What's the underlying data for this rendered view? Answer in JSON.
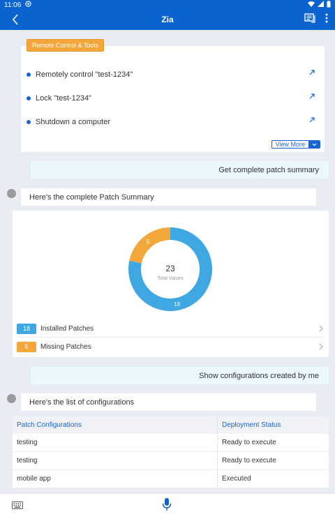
{
  "status": {
    "time": "11:06"
  },
  "header": {
    "title": "Zia"
  },
  "tools": {
    "badge": "Remote Control & Tools",
    "items": [
      {
        "label": "Remotely control \"test-1234\""
      },
      {
        "label": "Lock \"test-1234\""
      },
      {
        "label": "Shutdown a computer"
      }
    ],
    "view_more": "View More"
  },
  "messages": {
    "user1": "Get complete patch summary",
    "bot1": "Here's the complete Patch Summary",
    "user2": "Show configurations created by me",
    "bot2": "Here's the list of configurations"
  },
  "chart_data": {
    "type": "pie",
    "donut": true,
    "center_value": "23",
    "center_label": "Total Values",
    "slices": [
      {
        "label": "Installed Patches",
        "value": 18,
        "color": "#3fa8e3"
      },
      {
        "label": "Missing Patches",
        "value": 5,
        "color": "#f3a73a"
      }
    ]
  },
  "patch_rows": [
    {
      "count": "18",
      "label": "Installed Patches",
      "color": "#3fa8e3"
    },
    {
      "count": "5",
      "label": "Missing Patches",
      "color": "#f3a73a"
    }
  ],
  "config_table": {
    "headers": [
      "Patch Configurations",
      "Deployment Status"
    ],
    "rows": [
      {
        "name": "testing",
        "status": "Ready to execute"
      },
      {
        "name": "testing",
        "status": "Ready to execute"
      },
      {
        "name": "mobile app",
        "status": "Executed"
      }
    ]
  },
  "colors": {
    "primary": "#0b63cf",
    "accent": "#f3a73a",
    "chat_bg": "#e9ecf3"
  }
}
